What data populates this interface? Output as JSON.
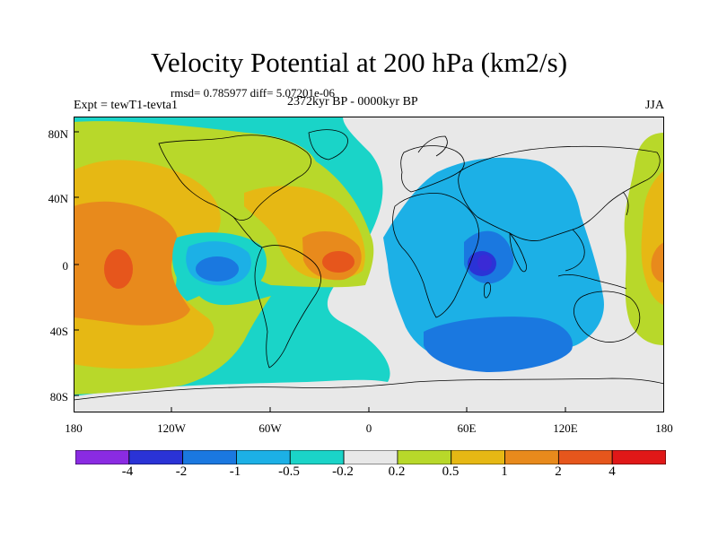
{
  "title": "Velocity Potential at 200 hPa (km2/s)",
  "stats": "rmsd= 0.785977  diff= 5.07201e-06",
  "experiment": "Expt = tewT1-tevta1",
  "period": "2372kyr BP - 0000kyr BP",
  "season": "JJA",
  "y_axis_labels": [
    "80N",
    "40N",
    "0",
    "40S",
    "80S"
  ],
  "x_axis_labels": [
    "180",
    "120W",
    "60W",
    "0",
    "60E",
    "120E",
    "180"
  ],
  "colorbar": {
    "colors": [
      "#8a2be2",
      "#2a33d6",
      "#1a78e0",
      "#1cb0e6",
      "#1ad4c8",
      "#e8e8e8",
      "#b8d82a",
      "#e6b814",
      "#e88a1c",
      "#e6561c",
      "#e01818"
    ],
    "labels": [
      "-4",
      "-2",
      "-1",
      "-0.5",
      "-0.2",
      "0.2",
      "0.5",
      "1",
      "2",
      "4"
    ]
  }
}
